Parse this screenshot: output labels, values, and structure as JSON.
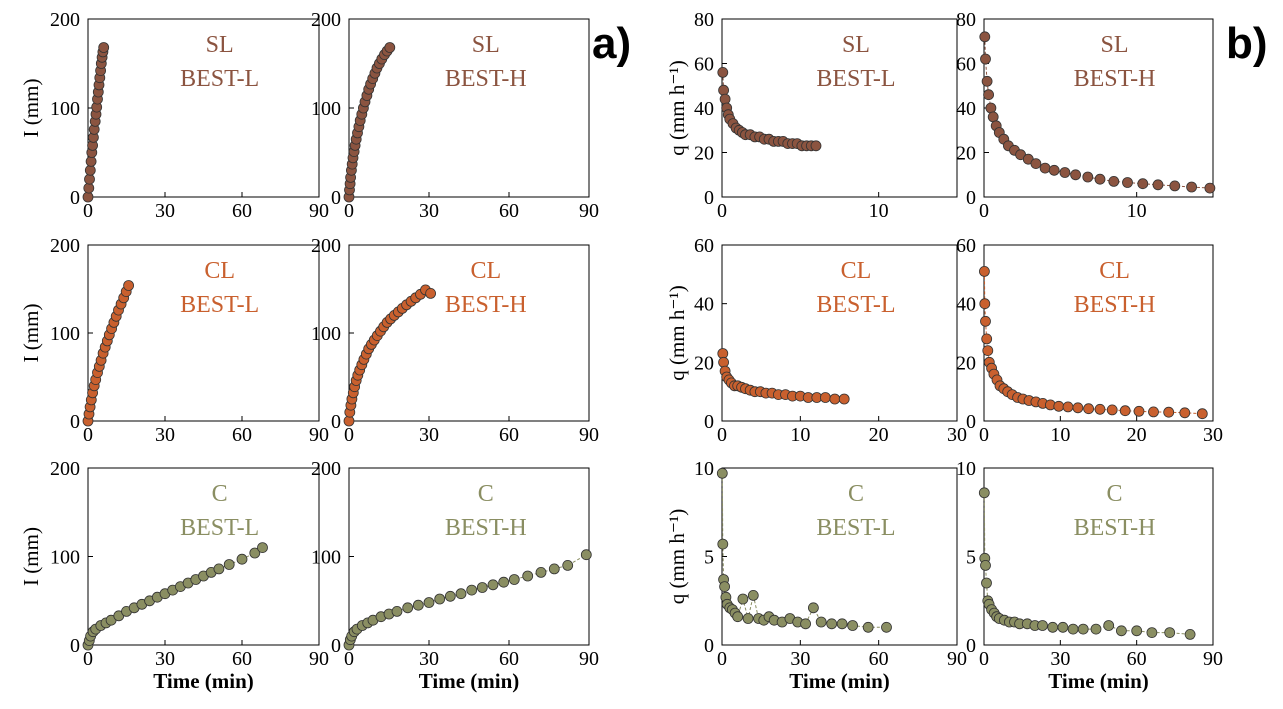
{
  "figure": {
    "panel_a_tag": "a)",
    "panel_b_tag": "b)",
    "colors": {
      "SL": "#8B5440",
      "CL": "#C9602E",
      "C": "#8A8E62"
    }
  },
  "chart_data": [
    {
      "id": "a-SL-L",
      "type": "scatter",
      "soil": "SL",
      "method": "BEST-L",
      "xlabel": "",
      "ylabel": "I (mm)",
      "xlim": [
        0,
        90
      ],
      "ylim": [
        0,
        200
      ],
      "xticks": [
        0,
        30,
        60,
        90
      ],
      "yticks": [
        0,
        100,
        200
      ],
      "series": [
        {
          "x": [
            0,
            0.3,
            0.6,
            0.9,
            1.2,
            1.5,
            1.8,
            2.1,
            2.4,
            2.8,
            3.1,
            3.4,
            3.7,
            4.0,
            4.3,
            4.6,
            4.9,
            5.2,
            5.5,
            5.8,
            6.1
          ],
          "y": [
            0,
            10,
            20,
            30,
            40,
            50,
            58,
            67,
            76,
            85,
            93,
            101,
            110,
            118,
            126,
            134,
            142,
            150,
            157,
            163,
            168
          ]
        }
      ]
    },
    {
      "id": "a-SL-H",
      "type": "scatter",
      "soil": "SL",
      "method": "BEST-H",
      "xlabel": "",
      "ylabel": "",
      "xlim": [
        0,
        90
      ],
      "ylim": [
        0,
        200
      ],
      "xticks": [
        0,
        30,
        60,
        90
      ],
      "yticks": [
        0,
        100,
        200
      ],
      "series": [
        {
          "x": [
            0,
            0.2,
            0.4,
            0.6,
            0.9,
            1.2,
            1.5,
            1.9,
            2.3,
            2.7,
            3.2,
            3.7,
            4.2,
            4.8,
            5.4,
            6.0,
            6.7,
            7.4,
            8.1,
            8.9,
            9.7,
            10.5,
            11.4,
            12.3,
            13.3,
            14.3,
            15.3
          ],
          "y": [
            0,
            8,
            15,
            22,
            30,
            37,
            44,
            51,
            58,
            65,
            72,
            79,
            86,
            93,
            100,
            107,
            114,
            121,
            127,
            133,
            139,
            145,
            150,
            155,
            160,
            164,
            168
          ]
        }
      ]
    },
    {
      "id": "a-CL-L",
      "type": "scatter",
      "soil": "CL",
      "method": "BEST-L",
      "xlabel": "",
      "ylabel": "I (mm)",
      "xlim": [
        0,
        90
      ],
      "ylim": [
        0,
        200
      ],
      "xticks": [
        0,
        30,
        60,
        90
      ],
      "yticks": [
        0,
        100,
        200
      ],
      "series": [
        {
          "x": [
            0,
            0.4,
            0.8,
            1.3,
            1.8,
            2.4,
            3.0,
            3.7,
            4.4,
            5.1,
            5.9,
            6.7,
            7.5,
            8.3,
            9.2,
            10.1,
            11.0,
            11.9,
            12.9,
            13.9,
            14.9,
            15.8
          ],
          "y": [
            0,
            8,
            16,
            24,
            32,
            40,
            47,
            55,
            62,
            69,
            77,
            84,
            91,
            98,
            105,
            112,
            119,
            126,
            133,
            140,
            147,
            154
          ]
        }
      ]
    },
    {
      "id": "a-CL-H",
      "type": "scatter",
      "soil": "CL",
      "method": "BEST-H",
      "xlabel": "",
      "ylabel": "",
      "xlim": [
        0,
        90
      ],
      "ylim": [
        0,
        200
      ],
      "xticks": [
        0,
        30,
        60,
        90
      ],
      "yticks": [
        0,
        100,
        200
      ],
      "series": [
        {
          "x": [
            0,
            0.3,
            0.7,
            1.1,
            1.6,
            2.1,
            2.7,
            3.3,
            4.0,
            4.8,
            5.6,
            6.5,
            7.4,
            8.4,
            9.5,
            10.6,
            11.8,
            13.0,
            14.3,
            15.6,
            17.0,
            18.5,
            20.0,
            21.6,
            23.3,
            25.0,
            26.8,
            28.7,
            30.6
          ],
          "y": [
            0,
            10,
            18,
            25,
            32,
            39,
            46,
            52,
            58,
            64,
            70,
            76,
            82,
            87,
            92,
            97,
            102,
            107,
            112,
            116,
            120,
            124,
            128,
            132,
            136,
            140,
            144,
            149,
            145
          ]
        }
      ]
    },
    {
      "id": "a-C-L",
      "type": "scatter",
      "soil": "C",
      "method": "BEST-L",
      "xlabel": "Time (min)",
      "ylabel": "I (mm)",
      "xlim": [
        0,
        90
      ],
      "ylim": [
        0,
        200
      ],
      "xticks": [
        0,
        30,
        60,
        90
      ],
      "yticks": [
        0,
        100,
        200
      ],
      "series": [
        {
          "x": [
            0,
            0.5,
            1,
            2,
            3,
            5,
            7,
            9,
            12,
            15,
            18,
            21,
            24,
            27,
            30,
            33,
            36,
            39,
            42,
            45,
            48,
            51,
            55,
            60,
            65,
            68
          ],
          "y": [
            0,
            5,
            10,
            15,
            18,
            22,
            25,
            28,
            33,
            38,
            42,
            46,
            50,
            54,
            58,
            62,
            66,
            70,
            74,
            78,
            82,
            86,
            91,
            97,
            104,
            110
          ]
        }
      ]
    },
    {
      "id": "a-C-H",
      "type": "scatter",
      "soil": "C",
      "method": "BEST-H",
      "xlabel": "Time (min)",
      "ylabel": "",
      "xlim": [
        0,
        90
      ],
      "ylim": [
        0,
        200
      ],
      "xticks": [
        0,
        30,
        60,
        90
      ],
      "yticks": [
        0,
        100,
        200
      ],
      "series": [
        {
          "x": [
            0,
            0.5,
            1,
            2,
            3,
            5,
            7,
            9,
            12,
            15,
            18,
            22,
            26,
            30,
            34,
            38,
            42,
            46,
            50,
            54,
            58,
            62,
            67,
            72,
            77,
            82,
            89
          ],
          "y": [
            0,
            6,
            10,
            15,
            18,
            22,
            25,
            28,
            32,
            35,
            38,
            42,
            45,
            48,
            52,
            55,
            58,
            62,
            65,
            68,
            71,
            74,
            78,
            82,
            86,
            90,
            102
          ]
        }
      ]
    },
    {
      "id": "b-SL-L",
      "type": "scatter",
      "soil": "SL",
      "method": "BEST-L",
      "xlabel": "",
      "ylabel": "q (mm h⁻¹)",
      "xlim": [
        0,
        15
      ],
      "ylim": [
        0,
        80
      ],
      "xticks": [
        0,
        10
      ],
      "yticks": [
        0,
        20,
        40,
        60,
        80
      ],
      "series": [
        {
          "x": [
            0.05,
            0.1,
            0.2,
            0.3,
            0.4,
            0.5,
            0.7,
            0.9,
            1.1,
            1.3,
            1.5,
            1.8,
            2.1,
            2.4,
            2.7,
            3.0,
            3.3,
            3.6,
            3.9,
            4.2,
            4.5,
            4.8,
            5.1,
            5.4,
            5.7,
            6.0
          ],
          "y": [
            56,
            48,
            44,
            40,
            37,
            35,
            33,
            31,
            30,
            29,
            28,
            28,
            27,
            27,
            26,
            26,
            25,
            25,
            25,
            24,
            24,
            24,
            23,
            23,
            23,
            23
          ]
        }
      ]
    },
    {
      "id": "b-SL-H",
      "type": "scatter",
      "soil": "SL",
      "method": "BEST-H",
      "xlabel": "",
      "ylabel": "",
      "xlim": [
        0,
        15
      ],
      "ylim": [
        0,
        80
      ],
      "xticks": [
        0,
        10
      ],
      "yticks": [
        0,
        20,
        40,
        60,
        80
      ],
      "series": [
        {
          "x": [
            0.05,
            0.1,
            0.2,
            0.3,
            0.45,
            0.6,
            0.8,
            1.0,
            1.3,
            1.6,
            2.0,
            2.4,
            2.9,
            3.4,
            4.0,
            4.6,
            5.3,
            6.0,
            6.8,
            7.6,
            8.5,
            9.4,
            10.4,
            11.4,
            12.5,
            13.6,
            14.8
          ],
          "y": [
            72,
            62,
            52,
            46,
            40,
            36,
            32,
            29,
            26,
            23,
            21,
            19,
            17,
            15,
            13,
            12,
            11,
            10,
            9,
            8,
            7,
            6.5,
            6,
            5.5,
            5,
            4.5,
            4
          ]
        }
      ]
    },
    {
      "id": "b-CL-L",
      "type": "scatter",
      "soil": "CL",
      "method": "BEST-L",
      "xlabel": "",
      "ylabel": "q (mm h⁻¹)",
      "xlim": [
        0,
        30
      ],
      "ylim": [
        0,
        60
      ],
      "xticks": [
        0,
        10,
        20,
        30
      ],
      "yticks": [
        0,
        20,
        40,
        60
      ],
      "series": [
        {
          "x": [
            0.1,
            0.2,
            0.4,
            0.6,
            0.9,
            1.2,
            1.6,
            2.0,
            2.5,
            3.0,
            3.6,
            4.2,
            4.9,
            5.6,
            6.4,
            7.2,
            8.1,
            9.0,
            10.0,
            11.0,
            12.1,
            13.2,
            14.4,
            15.6
          ],
          "y": [
            23,
            20,
            17,
            15,
            14,
            13,
            12,
            12,
            11.5,
            11,
            10.5,
            10,
            10,
            9.5,
            9.5,
            9,
            9,
            8.5,
            8.5,
            8,
            8,
            8,
            7.5,
            7.5
          ]
        }
      ]
    },
    {
      "id": "b-CL-H",
      "type": "scatter",
      "soil": "CL",
      "method": "BEST-H",
      "xlabel": "",
      "ylabel": "",
      "xlim": [
        0,
        30
      ],
      "ylim": [
        0,
        60
      ],
      "xticks": [
        0,
        10,
        20,
        30
      ],
      "yticks": [
        0,
        20,
        40,
        60
      ],
      "series": [
        {
          "x": [
            0.05,
            0.1,
            0.2,
            0.35,
            0.5,
            0.7,
            1.0,
            1.3,
            1.7,
            2.1,
            2.6,
            3.1,
            3.7,
            4.4,
            5.1,
            5.9,
            6.8,
            7.7,
            8.7,
            9.8,
            11.0,
            12.3,
            13.7,
            15.2,
            16.8,
            18.5,
            20.3,
            22.2,
            24.2,
            26.3,
            28.6
          ],
          "y": [
            51,
            40,
            34,
            28,
            24,
            20,
            18,
            16,
            14,
            12,
            11,
            10,
            9,
            8,
            7.5,
            7,
            6.5,
            6,
            5.5,
            5,
            4.8,
            4.5,
            4.2,
            4,
            3.8,
            3.5,
            3.3,
            3.1,
            3,
            2.8,
            2.5
          ]
        }
      ]
    },
    {
      "id": "b-C-L",
      "type": "scatter",
      "soil": "C",
      "method": "BEST-L",
      "xlabel": "Time (min)",
      "ylabel": "q (mm h⁻¹)",
      "xlim": [
        0,
        90
      ],
      "ylim": [
        0,
        10
      ],
      "xticks": [
        0,
        30,
        60,
        90
      ],
      "yticks": [
        0,
        5,
        10
      ],
      "series": [
        {
          "x": [
            0.1,
            0.3,
            0.6,
            1,
            1.5,
            2,
            3,
            4,
            5,
            6,
            8,
            10,
            12,
            14,
            16,
            18,
            20,
            23,
            26,
            29,
            32,
            35,
            38,
            42,
            46,
            50,
            56,
            63
          ],
          "y": [
            9.7,
            5.7,
            3.7,
            3.3,
            2.7,
            2.3,
            2.1,
            2.0,
            1.8,
            1.6,
            2.6,
            1.5,
            2.8,
            1.5,
            1.4,
            1.6,
            1.4,
            1.3,
            1.5,
            1.3,
            1.2,
            2.1,
            1.3,
            1.2,
            1.2,
            1.1,
            1.0,
            1.0
          ]
        }
      ]
    },
    {
      "id": "b-C-H",
      "type": "scatter",
      "soil": "C",
      "method": "BEST-H",
      "xlabel": "Time (min)",
      "ylabel": "",
      "xlim": [
        0,
        90
      ],
      "ylim": [
        0,
        10
      ],
      "xticks": [
        0,
        30,
        60,
        90
      ],
      "yticks": [
        0,
        5,
        10
      ],
      "series": [
        {
          "x": [
            0.1,
            0.3,
            0.6,
            1,
            1.5,
            2,
            3,
            4,
            5,
            6,
            8,
            10,
            12,
            14,
            17,
            20,
            23,
            27,
            31,
            35,
            39,
            44,
            49,
            54,
            60,
            66,
            73,
            81
          ],
          "y": [
            8.6,
            4.9,
            4.5,
            3.5,
            2.5,
            2.3,
            2.0,
            1.8,
            1.6,
            1.5,
            1.4,
            1.3,
            1.3,
            1.2,
            1.2,
            1.1,
            1.1,
            1.0,
            1.0,
            0.9,
            0.9,
            0.9,
            1.1,
            0.8,
            0.8,
            0.7,
            0.7,
            0.6
          ]
        }
      ]
    }
  ]
}
